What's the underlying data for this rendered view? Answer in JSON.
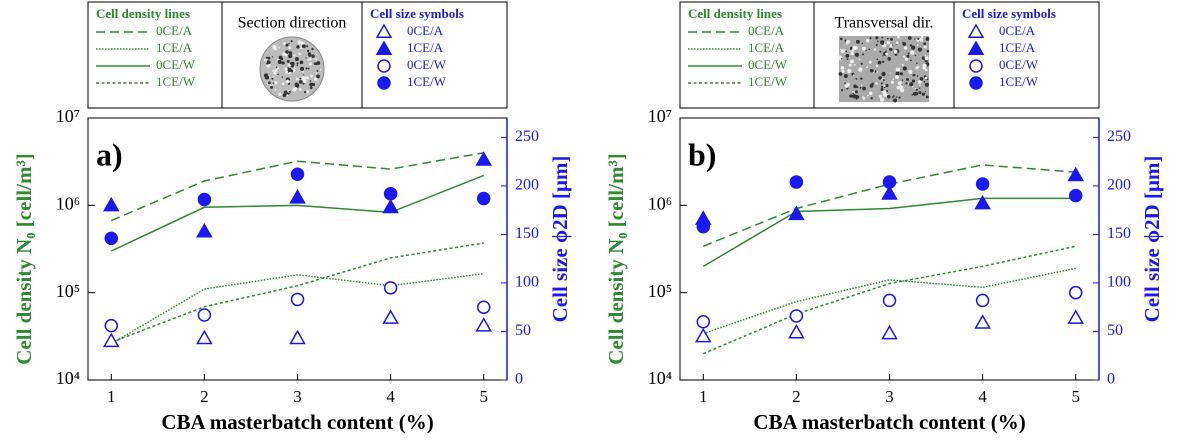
{
  "chart_data": [
    {
      "type": "line",
      "panel_label": "a)",
      "image_caption": "Section direction",
      "line_legend_title": "Cell density lines",
      "symbol_legend_title": "Cell size symbols",
      "x_label": "CBA masterbatch content (%)",
      "y_label": "Cell density N₀ [cell/m³]",
      "y2_label": "Cell size ϕ2D [μm]",
      "x": [
        1,
        2,
        3,
        4,
        5
      ],
      "xlim": [
        0.75,
        5.25
      ],
      "xticks": [
        1,
        2,
        3,
        4,
        5
      ],
      "log_y": true,
      "ylim": [
        10000,
        10000000
      ],
      "yticks": [
        {
          "value": 10000,
          "label": "10⁴"
        },
        {
          "value": 100000,
          "label": "10⁵"
        },
        {
          "value": 1000000,
          "label": "10⁶"
        },
        {
          "value": 10000000,
          "label": "10⁷"
        }
      ],
      "y2lim": [
        0,
        270
      ],
      "y2ticks": [
        0,
        50,
        100,
        150,
        200,
        250
      ],
      "series": [
        {
          "name": "0CE/A",
          "color": "#2e8b2e",
          "line_style": "dashed",
          "axis": "y",
          "values": [
            670000,
            1900000,
            3200000,
            2600000,
            4000000
          ]
        },
        {
          "name": "1CE/A",
          "color": "#2e8b2e",
          "line_style": "dotted",
          "axis": "y",
          "values": [
            26000,
            110000,
            160000,
            120000,
            165000
          ]
        },
        {
          "name": "0CE/W",
          "color": "#2e8b2e",
          "line_style": "solid",
          "axis": "y",
          "values": [
            300000,
            950000,
            1000000,
            830000,
            2200000
          ]
        },
        {
          "name": "1CE/W",
          "color": "#2e8b2e",
          "line_style": "short-dashed",
          "axis": "y",
          "values": [
            27000,
            69000,
            120000,
            250000,
            370000
          ]
        },
        {
          "name": "0CE/A",
          "color": "#1a1aee",
          "marker": "triangle-open",
          "axis": "y2",
          "values": [
            40,
            43,
            43,
            64,
            56
          ]
        },
        {
          "name": "1CE/A",
          "color": "#1a1aee",
          "marker": "triangle-filled",
          "axis": "y2",
          "values": [
            180,
            153,
            188,
            178,
            227
          ]
        },
        {
          "name": "0CE/W",
          "color": "#1a1aee",
          "marker": "circle-open",
          "axis": "y2",
          "values": [
            56,
            67,
            83,
            95,
            75
          ]
        },
        {
          "name": "1CE/W",
          "color": "#1a1aee",
          "marker": "circle-filled",
          "axis": "y2",
          "values": [
            146,
            186,
            212,
            192,
            187
          ]
        }
      ]
    },
    {
      "type": "line",
      "panel_label": "b)",
      "image_caption": "Transversal dir.",
      "line_legend_title": "Cell density lines",
      "symbol_legend_title": "Cell size symbols",
      "x_label": "CBA masterbatch content (%)",
      "y_label": "Cell density N₀ [cell/m³]",
      "y2_label": "Cell size ϕ2D [μm]",
      "x": [
        1,
        2,
        3,
        4,
        5
      ],
      "xlim": [
        0.75,
        5.25
      ],
      "xticks": [
        1,
        2,
        3,
        4,
        5
      ],
      "log_y": true,
      "ylim": [
        10000,
        10000000
      ],
      "yticks": [
        {
          "value": 10000,
          "label": "10⁴"
        },
        {
          "value": 100000,
          "label": "10⁵"
        },
        {
          "value": 1000000,
          "label": "10⁶"
        },
        {
          "value": 10000000,
          "label": "10⁷"
        }
      ],
      "y2lim": [
        0,
        270
      ],
      "y2ticks": [
        0,
        50,
        100,
        150,
        200,
        250
      ],
      "series": [
        {
          "name": "0CE/A",
          "color": "#2e8b2e",
          "line_style": "dashed",
          "axis": "y",
          "values": [
            340000,
            920000,
            1750000,
            2900000,
            2400000
          ]
        },
        {
          "name": "1CE/A",
          "color": "#2e8b2e",
          "line_style": "dotted",
          "axis": "y",
          "values": [
            34000,
            79000,
            140000,
            115000,
            190000
          ]
        },
        {
          "name": "0CE/W",
          "color": "#2e8b2e",
          "line_style": "solid",
          "axis": "y",
          "values": [
            200000,
            850000,
            920000,
            1200000,
            1200000
          ]
        },
        {
          "name": "1CE/W",
          "color": "#2e8b2e",
          "line_style": "short-dashed",
          "axis": "y",
          "values": [
            20000,
            57000,
            127000,
            200000,
            340000
          ]
        },
        {
          "name": "0CE/A",
          "color": "#1a1aee",
          "marker": "triangle-open",
          "axis": "y2",
          "values": [
            45,
            49,
            48,
            59,
            64
          ]
        },
        {
          "name": "1CE/A",
          "color": "#1a1aee",
          "marker": "triangle-filled",
          "axis": "y2",
          "values": [
            166,
            171,
            192,
            182,
            211
          ]
        },
        {
          "name": "0CE/W",
          "color": "#1a1aee",
          "marker": "circle-open",
          "axis": "y2",
          "values": [
            60,
            66,
            82,
            82,
            90
          ]
        },
        {
          "name": "1CE/W",
          "color": "#1a1aee",
          "marker": "circle-filled",
          "axis": "y2",
          "values": [
            158,
            204,
            204,
            202,
            190
          ]
        }
      ]
    }
  ]
}
